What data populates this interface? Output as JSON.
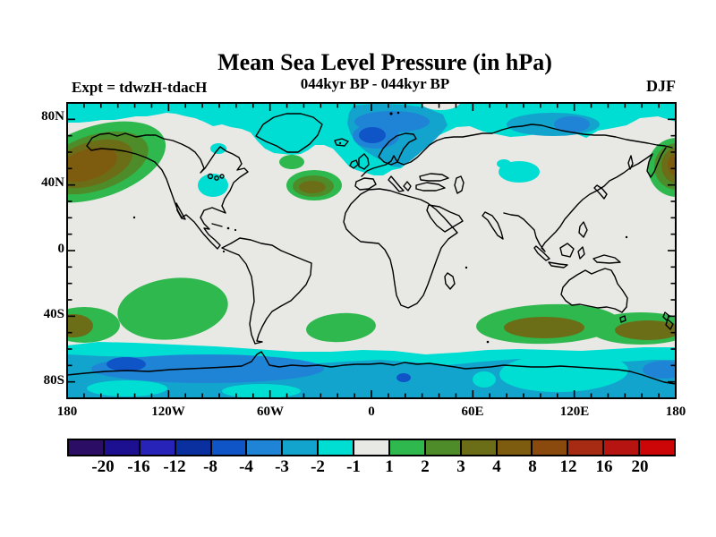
{
  "header": {
    "title": "Mean Sea Level Pressure (in hPa)",
    "subtitle": "044kyr BP - 044kyr BP",
    "experiment_label": "Expt = tdwzH-tdacH",
    "season_label": "DJF"
  },
  "axes": {
    "lat_ticks": [
      "80N",
      "40N",
      "0",
      "40S",
      "80S"
    ],
    "lon_ticks": [
      "180",
      "120W",
      "60W",
      "0",
      "60E",
      "120E",
      "180"
    ]
  },
  "colorbar": {
    "labels": [
      "-20",
      "-16",
      "-12",
      "-8",
      "-4",
      "-3",
      "-2",
      "-1",
      "1",
      "2",
      "3",
      "4",
      "8",
      "12",
      "16",
      "20"
    ],
    "colors": [
      "#2b0d66",
      "#1c1090",
      "#2823b8",
      "#0a2f9e",
      "#0f55c8",
      "#1f84d6",
      "#12a4cc",
      "#00ddd2",
      "#e8e8e5",
      "#2eb84e",
      "#4e8c2a",
      "#6b6e17",
      "#7d5c10",
      "#8a4a0e",
      "#a62b12",
      "#b51410",
      "#cc0606"
    ]
  },
  "chart_data": {
    "type": "heatmap",
    "subtype": "filled-contour world map (equirectangular)",
    "title": "Mean Sea Level Pressure (in hPa)",
    "subtitle": "044kyr BP - 044kyr BP",
    "experiment": "Expt = tdwzH-tdacH",
    "season": "DJF",
    "units": "hPa",
    "lon_range": [
      -180,
      180
    ],
    "lat_range": [
      -90,
      90
    ],
    "lon_tick_labels": [
      "180",
      "120W",
      "60W",
      "0",
      "60E",
      "120E",
      "180"
    ],
    "lat_tick_labels": [
      "80N",
      "40N",
      "0",
      "40S",
      "80S"
    ],
    "contour_levels": [
      -20,
      -16,
      -12,
      -8,
      -4,
      -3,
      -2,
      -1,
      1,
      2,
      3,
      4,
      8,
      12,
      16,
      20
    ],
    "background_value_range": "-1 to 1 (light gray)",
    "anomaly_regions": [
      {
        "region": "Arctic circumpolar band 70N-90N",
        "value_range": "-2 to -1 (cyan), locally -3 to -2"
      },
      {
        "region": "Norwegian Sea / Iceland / Scandinavia ~60-75N",
        "value_range": "-8 to -3 (blue core near 0E,68N)"
      },
      {
        "region": "North Siberian coast ~105E,72N",
        "value_range": "-4 to -3"
      },
      {
        "region": "Hudson Bay area",
        "value_range": "-2 to -1 (small spot)"
      },
      {
        "region": "Eastern North America ~80W,35N",
        "value_range": "-2 to -1"
      },
      {
        "region": "Central Siberia ~90E,45N",
        "value_range": "-2 to -1"
      },
      {
        "region": "Gulf of Alaska / Bering Sea ~170W,55N",
        "value_range": "+1 to +8 (brown core)"
      },
      {
        "region": "NW Pacific / Kamchatka at 180E,55N",
        "value_range": "+1 to +12 (dark core at map edge)"
      },
      {
        "region": "Central North Atlantic ~35W,40N",
        "value_range": "+1 to +4 (olive core)"
      },
      {
        "region": "Small North Atlantic spot ~48W,55N",
        "value_range": "+1 to +2"
      },
      {
        "region": "South Pacific ~120W,35S",
        "value_range": "+1 to +2"
      },
      {
        "region": "SE Pacific at date line ~40S",
        "value_range": "+1 to +4 (olive core)"
      },
      {
        "region": "South Atlantic ~20W,45S",
        "value_range": "+1 to +2"
      },
      {
        "region": "South Indian Ocean to south of Australia ~45S",
        "value_range": "+1 to +4 (two olive cores)"
      },
      {
        "region": "Southern Ocean / Antarctic band 55S-90S",
        "value_range": "-3 to -1, locally -8 to -4 near 90W"
      }
    ],
    "legend_position": "horizontal colorbar below map",
    "grid": false
  }
}
